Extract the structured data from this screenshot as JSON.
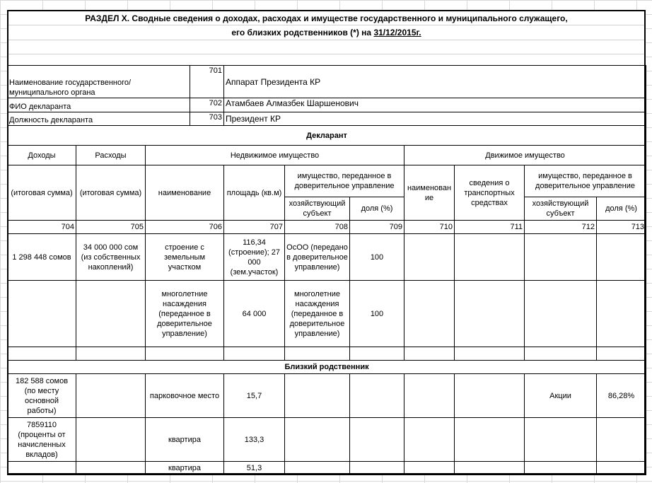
{
  "title": {
    "line1": "РАЗДЕЛ X. Сводные сведения о доходах, расходах и имуществе государственного и муниципального служащего,",
    "line2_prefix": "его близких родственников (*) на ",
    "date": "31/12/2015г."
  },
  "info": [
    {
      "label": "Наименование государственного/ муниципального органа",
      "code": "701",
      "value": "Аппарат Президента КР"
    },
    {
      "label": "ФИО декларанта",
      "code": "702",
      "value": "Атамбаев Алмазбек Шаршенович"
    },
    {
      "label": "Должность декларанта",
      "code": "703",
      "value": "Президент КР"
    }
  ],
  "sections": {
    "declarant": "Декларант",
    "relative": "Близкий родственник"
  },
  "headers": {
    "income": "Доходы",
    "expenses": "Расходы",
    "real_estate": "Недвижимое имущество",
    "movable": "Движимое имущество",
    "total1": "(итоговая сумма)",
    "total2": "(итоговая сумма)",
    "name": "наименование",
    "area": "площадь (кв.м)",
    "trust": "имущество, переданное в доверительное управление",
    "entity": "хозяйствующий субъект",
    "share": "доля (%)",
    "m_name": "наименование",
    "transport": "сведения о транспортных средствах",
    "m_trust": "имущество, переданное в доверительное управление",
    "m_entity": "хозяйствующий субъект",
    "m_share": "доля (%)"
  },
  "codes": [
    "704",
    "705",
    "706",
    "707",
    "708",
    "709",
    "710",
    "711",
    "712",
    "713"
  ],
  "declarant_rows": [
    [
      "1 298 448 сомов",
      "34 000 000 сом (из собственных накоплений)",
      "строение с земельным участком",
      "116,34 (строение); 27 000 (зем.участок)",
      "ОсОО (передано в доверительное управление)",
      "100",
      "",
      "",
      "",
      ""
    ],
    [
      "",
      "",
      "многолетние насаждения (переданное в доверительное управление)",
      "64 000",
      "многолетние насаждения (переданное в доверительное управление)",
      "100",
      "",
      "",
      "",
      ""
    ]
  ],
  "relative_rows": [
    [
      "182 588 сомов (по месту основной работы)",
      "",
      "парковочное место",
      "15,7",
      "",
      "",
      "",
      "",
      "Акции",
      "86,28%"
    ],
    [
      "7859110 (проценты от начисленных вкладов)",
      "",
      "квартира",
      "133,3",
      "",
      "",
      "",
      "",
      "",
      ""
    ],
    [
      "",
      "",
      "квартира",
      "51,3",
      "",
      "",
      "",
      "",
      "",
      ""
    ]
  ]
}
